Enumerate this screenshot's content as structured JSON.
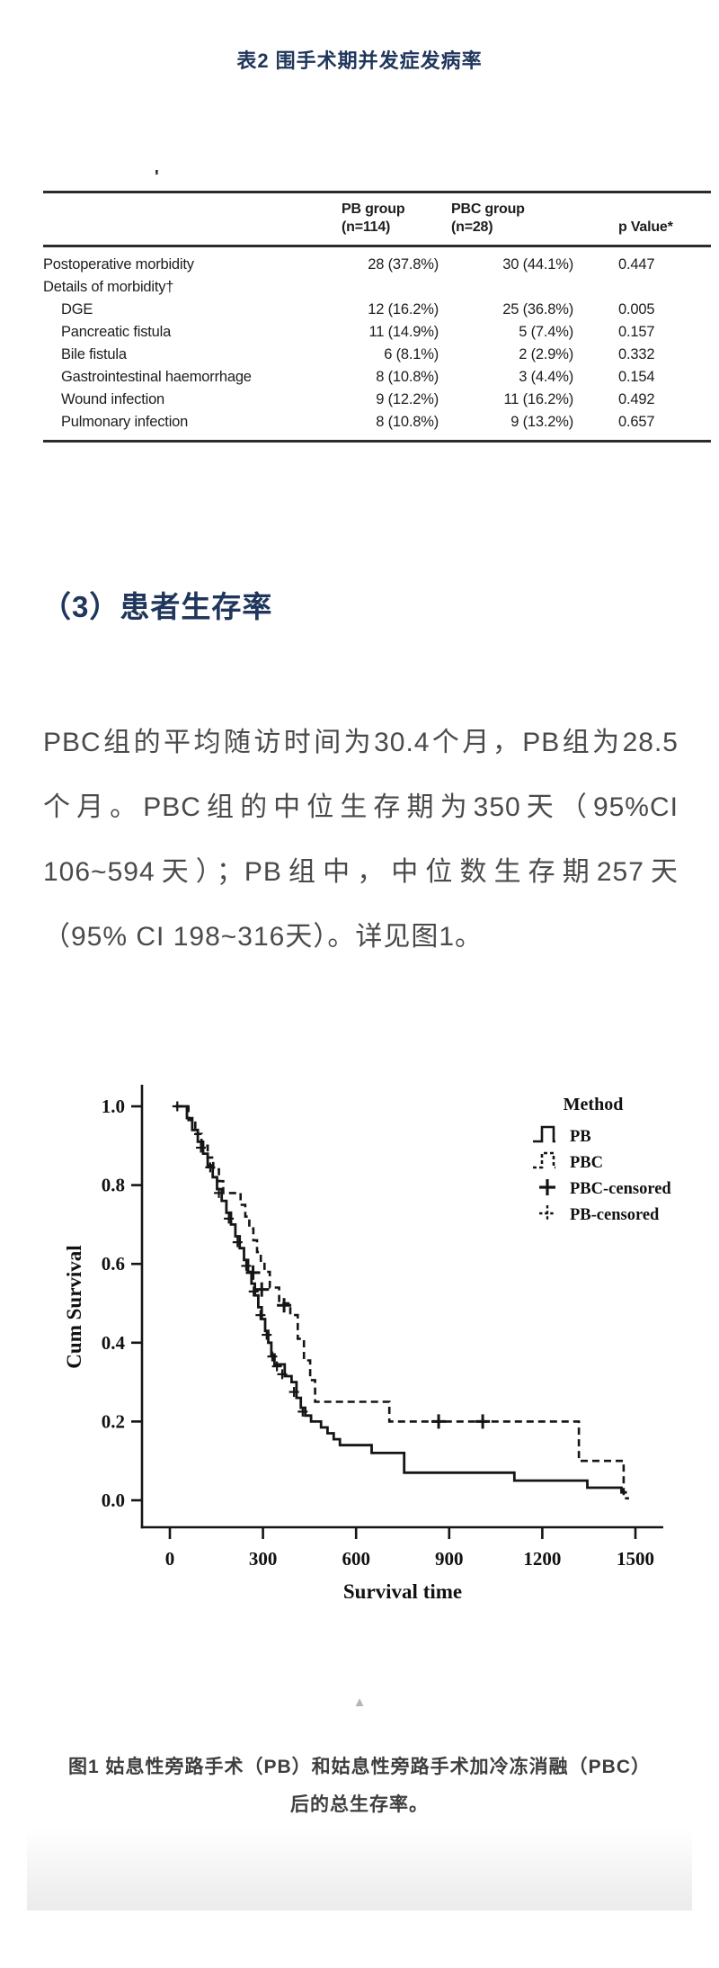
{
  "page": {
    "table_title": "表2 围手术期并发症发病率",
    "stray_mark": "'",
    "section_heading": "（3）患者生存率",
    "collapse_icon": "▲",
    "caption_line1": "图1 姑息性旁路手术（PB）和姑息性旁路手术加冷冻消融（PBC）",
    "caption_line2": "后的总生存率。"
  },
  "paragraph": {
    "lines": [
      "PBC组的平均随访时间为30.4个月，PB组为28.5",
      "个月。PBC组的中位生存期为350天（95%CI",
      "106~594天）；PB组中，中位数生存期257天",
      "（95% CI 198~316天）。详见图1。"
    ]
  },
  "table": {
    "columns": [
      "",
      "PB group\n(n=114)",
      "PBC group\n(n=28)",
      "p Value*"
    ],
    "rows": [
      {
        "label": "Postoperative morbidity",
        "indent": false,
        "pb": "28 (37.8%)",
        "pbc": "30 (44.1%)",
        "p": "0.447"
      },
      {
        "label": "Details of morbidity†",
        "indent": false,
        "pb": "",
        "pbc": "",
        "p": ""
      },
      {
        "label": "DGE",
        "indent": true,
        "pb": "12 (16.2%)",
        "pbc": "25 (36.8%)",
        "p": "0.005"
      },
      {
        "label": "Pancreatic fistula",
        "indent": true,
        "pb": "11 (14.9%)",
        "pbc": "5 (7.4%)",
        "p": "0.157"
      },
      {
        "label": "Bile fistula",
        "indent": true,
        "pb": "6 (8.1%)",
        "pbc": "2 (2.9%)",
        "p": "0.332"
      },
      {
        "label": "Gastrointestinal haemorrhage",
        "indent": true,
        "pb": "8 (10.8%)",
        "pbc": "3 (4.4%)",
        "p": "0.154"
      },
      {
        "label": "Wound infection",
        "indent": true,
        "pb": "9 (12.2%)",
        "pbc": "11 (16.2%)",
        "p": "0.492"
      },
      {
        "label": "Pulmonary infection",
        "indent": true,
        "pb": "8 (10.8%)",
        "pbc": "9 (13.2%)",
        "p": "0.657"
      }
    ]
  },
  "chart_data": {
    "type": "line",
    "subtype": "kaplan-meier-step",
    "title": "",
    "xlabel": "Survival time",
    "ylabel": "Cum Survival",
    "legend_title": "Method",
    "legend_position": "top-right",
    "grid": false,
    "xlim": [
      0,
      1590
    ],
    "ylim": [
      0.0,
      1.05
    ],
    "x_ticks": [
      "0",
      "300",
      "600",
      "900",
      "1200",
      "1500"
    ],
    "y_ticks": [
      "1.0",
      "0.8",
      "0.6",
      "0.4",
      "0.2",
      "0.0"
    ],
    "series": [
      {
        "name": "PB",
        "style": "solid-step",
        "points": [
          [
            18,
            1.0
          ],
          [
            55,
            0.97
          ],
          [
            72,
            0.94
          ],
          [
            90,
            0.91
          ],
          [
            107,
            0.88
          ],
          [
            122,
            0.85
          ],
          [
            138,
            0.82
          ],
          [
            152,
            0.79
          ],
          [
            167,
            0.76
          ],
          [
            182,
            0.73
          ],
          [
            197,
            0.7
          ],
          [
            211,
            0.67
          ],
          [
            225,
            0.64
          ],
          [
            239,
            0.61
          ],
          [
            252,
            0.58
          ],
          [
            263,
            0.55
          ],
          [
            274,
            0.52
          ],
          [
            285,
            0.49
          ],
          [
            296,
            0.46
          ],
          [
            307,
            0.43
          ],
          [
            317,
            0.4
          ],
          [
            327,
            0.37
          ],
          [
            337,
            0.345
          ],
          [
            370,
            0.315
          ],
          [
            392,
            0.3
          ],
          [
            408,
            0.26
          ],
          [
            422,
            0.235
          ],
          [
            436,
            0.215
          ],
          [
            455,
            0.2
          ],
          [
            487,
            0.185
          ],
          [
            508,
            0.17
          ],
          [
            528,
            0.155
          ],
          [
            548,
            0.14
          ],
          [
            650,
            0.12
          ],
          [
            755,
            0.07
          ],
          [
            1110,
            0.05
          ],
          [
            1345,
            0.032
          ],
          [
            1455,
            0.02
          ]
        ]
      },
      {
        "name": "PBC",
        "style": "dashed-step",
        "points": [
          [
            18,
            1.0
          ],
          [
            60,
            0.965
          ],
          [
            82,
            0.93
          ],
          [
            102,
            0.9
          ],
          [
            122,
            0.87
          ],
          [
            140,
            0.84
          ],
          [
            158,
            0.81
          ],
          [
            172,
            0.78
          ],
          [
            228,
            0.75
          ],
          [
            243,
            0.72
          ],
          [
            256,
            0.69
          ],
          [
            269,
            0.66
          ],
          [
            281,
            0.63
          ],
          [
            293,
            0.605
          ],
          [
            305,
            0.58
          ],
          [
            322,
            0.54
          ],
          [
            352,
            0.5
          ],
          [
            388,
            0.47
          ],
          [
            412,
            0.41
          ],
          [
            432,
            0.355
          ],
          [
            452,
            0.305
          ],
          [
            468,
            0.25
          ],
          [
            707,
            0.2
          ],
          [
            1318,
            0.1
          ],
          [
            1462,
            0.005
          ]
        ]
      },
      {
        "name": "PBC-censored",
        "style": "plus-markers",
        "points": [
          [
            268,
            0.578
          ],
          [
            296,
            0.535
          ],
          [
            368,
            0.495
          ],
          [
            866,
            0.2
          ],
          [
            1008,
            0.2
          ]
        ]
      },
      {
        "name": "PB-censored",
        "style": "tick-markers",
        "points": [
          [
            24,
            1.0
          ],
          [
            100,
            0.895
          ],
          [
            130,
            0.845
          ],
          [
            158,
            0.78
          ],
          [
            190,
            0.715
          ],
          [
            218,
            0.655
          ],
          [
            246,
            0.595
          ],
          [
            270,
            0.53
          ],
          [
            292,
            0.47
          ],
          [
            312,
            0.42
          ],
          [
            330,
            0.365
          ],
          [
            345,
            0.34
          ],
          [
            362,
            0.32
          ],
          [
            400,
            0.275
          ],
          [
            428,
            0.225
          ]
        ]
      }
    ]
  }
}
